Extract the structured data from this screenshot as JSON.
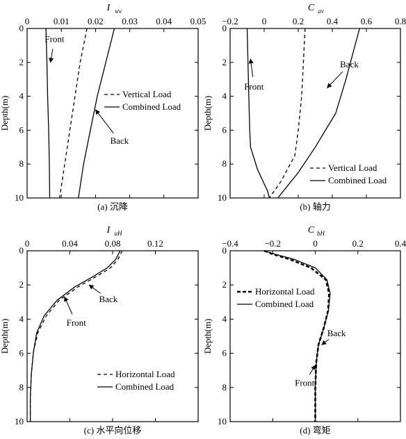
{
  "chart_data": [
    {
      "id": "a",
      "type": "line",
      "title": "I",
      "title_sub": "wv",
      "caption": "(a) 沉降",
      "ylabel": "Depth(m)",
      "xlim": [
        0,
        0.05
      ],
      "ylim": [
        0,
        10
      ],
      "xticks": [
        "0",
        "0.01",
        "0.02",
        "0.03",
        "0.04",
        "0.05"
      ],
      "xtick_values": [
        0,
        0.01,
        0.02,
        0.03,
        0.04,
        0.05
      ],
      "yticks": [
        "0",
        "2",
        "4",
        "6",
        "8",
        "10"
      ],
      "ytick_values": [
        0,
        2,
        4,
        6,
        8,
        10
      ],
      "legend": {
        "dashed": "Vertical Load",
        "solid": "Combined Load"
      },
      "series": [
        {
          "style": "solid",
          "x": [
            0.0055,
            0.0058,
            0.006,
            0.0063,
            0.0065,
            0.0066
          ],
          "y": [
            0,
            2,
            4,
            6,
            8,
            10
          ]
        },
        {
          "style": "dashed",
          "x": [
            0.0175,
            0.0155,
            0.014,
            0.0125,
            0.011,
            0.0095
          ],
          "y": [
            0,
            2,
            4,
            6,
            8,
            10
          ]
        },
        {
          "style": "solid",
          "x": [
            0.0255,
            0.023,
            0.0205,
            0.0185,
            0.0165,
            0.015
          ],
          "y": [
            0,
            2,
            4,
            6,
            8,
            10
          ]
        }
      ],
      "annotations": [
        {
          "text": "Front",
          "x": 0.008,
          "y": 0.8,
          "ax": 0.0068,
          "ay": 2.0
        },
        {
          "text": "Back",
          "x": 0.027,
          "y": 6.8,
          "ax": 0.02,
          "ay": 4.8
        }
      ]
    },
    {
      "id": "b",
      "type": "line",
      "title": "C",
      "title_sub": "av",
      "caption": "(b) 轴力",
      "ylabel": "Depth(m)",
      "xlim": [
        -0.2,
        0.8
      ],
      "ylim": [
        0,
        10
      ],
      "xticks": [
        "−0.2",
        "0",
        "0.2",
        "0.4",
        "0.6",
        "0.8"
      ],
      "xtick_values": [
        -0.2,
        0,
        0.2,
        0.4,
        0.6,
        0.8
      ],
      "yticks": [
        "0",
        "2",
        "4",
        "6",
        "8",
        "10"
      ],
      "ytick_values": [
        0,
        2,
        4,
        6,
        8,
        10
      ],
      "legend": {
        "dashed": "Vertical Load",
        "solid": "Combined Load"
      },
      "series": [
        {
          "style": "solid",
          "x": [
            -0.1,
            -0.095,
            -0.09,
            -0.085,
            -0.08,
            -0.04,
            0.02,
            0.03
          ],
          "y": [
            0,
            2,
            4,
            6,
            7,
            8.3,
            9.6,
            10
          ]
        },
        {
          "style": "dashed",
          "x": [
            0.24,
            0.23,
            0.22,
            0.2,
            0.18,
            0.1,
            0.03
          ],
          "y": [
            0,
            2,
            4,
            6,
            7.5,
            9,
            10
          ]
        },
        {
          "style": "solid",
          "x": [
            0.56,
            0.52,
            0.48,
            0.42,
            0.3,
            0.2,
            0.08
          ],
          "y": [
            0,
            1.5,
            3,
            5,
            7,
            8.5,
            10
          ]
        }
      ],
      "annotations": [
        {
          "text": "Front",
          "x": -0.06,
          "y": 3.6,
          "ax": -0.08,
          "ay": 1.8
        },
        {
          "text": "Back",
          "x": 0.5,
          "y": 2.3,
          "ax": 0.37,
          "ay": 3.5
        }
      ]
    },
    {
      "id": "c",
      "type": "line",
      "title": "I",
      "title_sub": "uH",
      "caption": "(c) 水平向位移",
      "ylabel": "Depth(m)",
      "xlim": [
        0,
        0.16
      ],
      "ylim": [
        0,
        10
      ],
      "xticks": [
        "0",
        "0.04",
        "0.08",
        "0.12"
      ],
      "xtick_values": [
        0,
        0.04,
        0.08,
        0.12
      ],
      "yticks": [
        "0",
        "2",
        "4",
        "6",
        "8",
        "10"
      ],
      "ytick_values": [
        0,
        2,
        4,
        6,
        8,
        10
      ],
      "legend": {
        "dashed": "Horizontal Load",
        "solid": "Combined Load"
      },
      "series": [
        {
          "style": "dashed",
          "x": [
            0.089,
            0.085,
            0.078,
            0.065,
            0.048,
            0.03,
            0.018,
            0.01,
            0.006,
            0.004,
            0.003,
            0.003
          ],
          "y": [
            0,
            0.5,
            1.0,
            1.5,
            2.1,
            2.9,
            3.8,
            4.8,
            5.9,
            7.2,
            8.6,
            10
          ]
        },
        {
          "style": "solid",
          "x": [
            0.087,
            0.083,
            0.075,
            0.062,
            0.045,
            0.028,
            0.016,
            0.009,
            0.006,
            0.004,
            0.003,
            0.003
          ],
          "y": [
            0,
            0.5,
            1.0,
            1.5,
            2.1,
            2.9,
            3.8,
            4.8,
            5.9,
            7.2,
            8.6,
            10
          ]
        }
      ],
      "annotations": [
        {
          "text": "Back",
          "x": 0.076,
          "y": 3.0,
          "ax": 0.058,
          "ay": 2.0
        },
        {
          "text": "Front",
          "x": 0.046,
          "y": 4.4,
          "ax": 0.035,
          "ay": 2.7
        }
      ]
    },
    {
      "id": "d",
      "type": "line",
      "title": "C",
      "title_sub": "bH",
      "caption": "(d) 弯矩",
      "ylabel": "Depth(m)",
      "xlim": [
        -0.4,
        0.4
      ],
      "ylim": [
        0,
        10
      ],
      "xticks": [
        "−0.4",
        "−0.2",
        "0",
        "0.2",
        "0.4"
      ],
      "xtick_values": [
        -0.4,
        -0.2,
        0,
        0.2,
        0.4
      ],
      "yticks": [
        "0",
        "2",
        "4",
        "6",
        "8",
        "10"
      ],
      "ytick_values": [
        0,
        2,
        4,
        6,
        8,
        10
      ],
      "legend": {
        "dashed": "Horizontal Load",
        "solid": "Combined Load"
      },
      "series": [
        {
          "style": "dashed",
          "x": [
            -0.24,
            -0.2,
            -0.12,
            -0.02,
            0.05,
            0.065,
            0.06,
            0.04,
            0.015,
            0.005,
            0.0,
            0.0
          ],
          "y": [
            0,
            0.2,
            0.5,
            1.0,
            1.7,
            2.5,
            3.5,
            4.5,
            5.5,
            6.5,
            8.0,
            10
          ]
        },
        {
          "style": "solid",
          "x": [
            -0.24,
            -0.19,
            -0.1,
            0.0,
            0.055,
            0.07,
            0.062,
            0.04,
            0.015,
            0.005,
            0.0,
            0.0
          ],
          "y": [
            0,
            0.2,
            0.5,
            1.0,
            1.7,
            2.5,
            3.5,
            4.5,
            5.5,
            6.5,
            8.0,
            10
          ]
        }
      ],
      "annotations": [
        {
          "text": "Back",
          "x": 0.1,
          "y": 5.0,
          "ax": 0.03,
          "ay": 5.5
        },
        {
          "text": "Front",
          "x": -0.05,
          "y": 7.9,
          "ax": 0.0,
          "ay": 6.7
        }
      ]
    }
  ]
}
